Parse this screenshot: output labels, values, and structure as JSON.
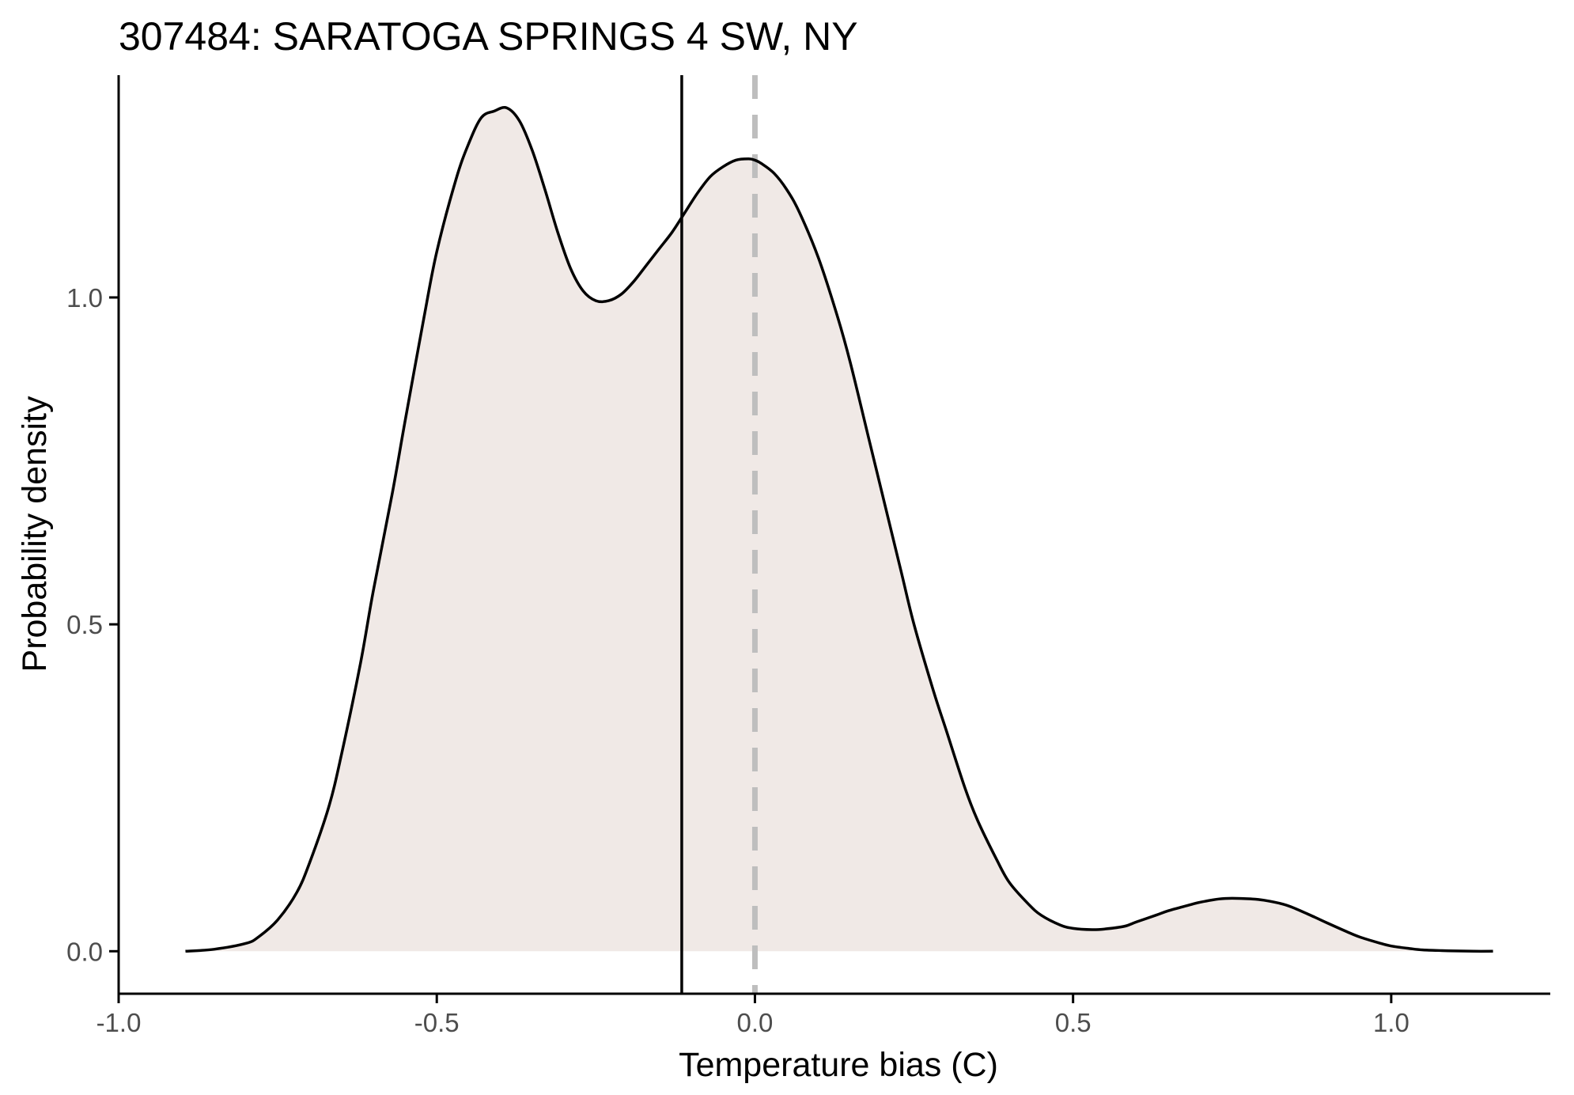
{
  "chart_data": {
    "type": "area",
    "title": "307484: SARATOGA SPRINGS 4 SW, NY",
    "xlabel": "Temperature bias (C)",
    "ylabel": "Probability density",
    "xlim": [
      -1.0,
      1.25
    ],
    "ylim": [
      -0.065,
      1.34
    ],
    "x_ticks": [
      -1.0,
      -0.5,
      0.0,
      0.5,
      1.0
    ],
    "x_tick_labels": [
      "-1.0",
      "-0.5",
      "0.0",
      "0.5",
      "1.0"
    ],
    "y_ticks": [
      0.0,
      0.5,
      1.0
    ],
    "y_tick_labels": [
      "0.0",
      "0.5",
      "1.0"
    ],
    "grid": false,
    "legend": "none",
    "fill_color": "#f0e9e6",
    "line_color": "#000000",
    "reference_lines": [
      {
        "name": "mean",
        "x": -0.115,
        "style": "solid",
        "color": "#000000"
      },
      {
        "name": "zero",
        "x": 0.0,
        "style": "dashed",
        "color": "#bebebe"
      }
    ],
    "series": [
      {
        "x": [
          -0.895,
          -0.85,
          -0.8,
          -0.78,
          -0.75,
          -0.72,
          -0.7,
          -0.67,
          -0.65,
          -0.62,
          -0.6,
          -0.57,
          -0.55,
          -0.52,
          -0.5,
          -0.47,
          -0.45,
          -0.43,
          -0.41,
          -0.39,
          -0.37,
          -0.35,
          -0.33,
          -0.31,
          -0.29,
          -0.27,
          -0.25,
          -0.23,
          -0.21,
          -0.19,
          -0.17,
          -0.15,
          -0.13,
          -0.11,
          -0.09,
          -0.07,
          -0.05,
          -0.03,
          -0.01,
          0.0,
          0.01,
          0.03,
          0.05,
          0.07,
          0.1,
          0.13,
          0.15,
          0.18,
          0.2,
          0.23,
          0.25,
          0.28,
          0.3,
          0.33,
          0.35,
          0.38,
          0.4,
          0.43,
          0.45,
          0.48,
          0.5,
          0.53,
          0.55,
          0.58,
          0.6,
          0.63,
          0.65,
          0.68,
          0.7,
          0.73,
          0.75,
          0.78,
          0.8,
          0.83,
          0.85,
          0.88,
          0.9,
          0.93,
          0.95,
          0.98,
          1.0,
          1.03,
          1.05,
          1.08,
          1.1,
          1.13,
          1.16
        ],
        "y": [
          0.0,
          0.003,
          0.012,
          0.022,
          0.048,
          0.09,
          0.135,
          0.22,
          0.3,
          0.44,
          0.55,
          0.7,
          0.81,
          0.97,
          1.07,
          1.18,
          1.235,
          1.275,
          1.285,
          1.29,
          1.27,
          1.225,
          1.165,
          1.1,
          1.045,
          1.01,
          0.995,
          0.995,
          1.005,
          1.025,
          1.05,
          1.075,
          1.1,
          1.13,
          1.16,
          1.185,
          1.2,
          1.21,
          1.212,
          1.21,
          1.205,
          1.19,
          1.165,
          1.13,
          1.06,
          0.97,
          0.9,
          0.78,
          0.7,
          0.58,
          0.5,
          0.4,
          0.34,
          0.25,
          0.2,
          0.14,
          0.105,
          0.072,
          0.055,
          0.04,
          0.035,
          0.033,
          0.034,
          0.038,
          0.045,
          0.055,
          0.062,
          0.07,
          0.075,
          0.08,
          0.081,
          0.08,
          0.078,
          0.072,
          0.065,
          0.052,
          0.043,
          0.03,
          0.022,
          0.013,
          0.008,
          0.004,
          0.002,
          0.001,
          0.0005,
          0.0,
          0.0
        ]
      }
    ]
  }
}
